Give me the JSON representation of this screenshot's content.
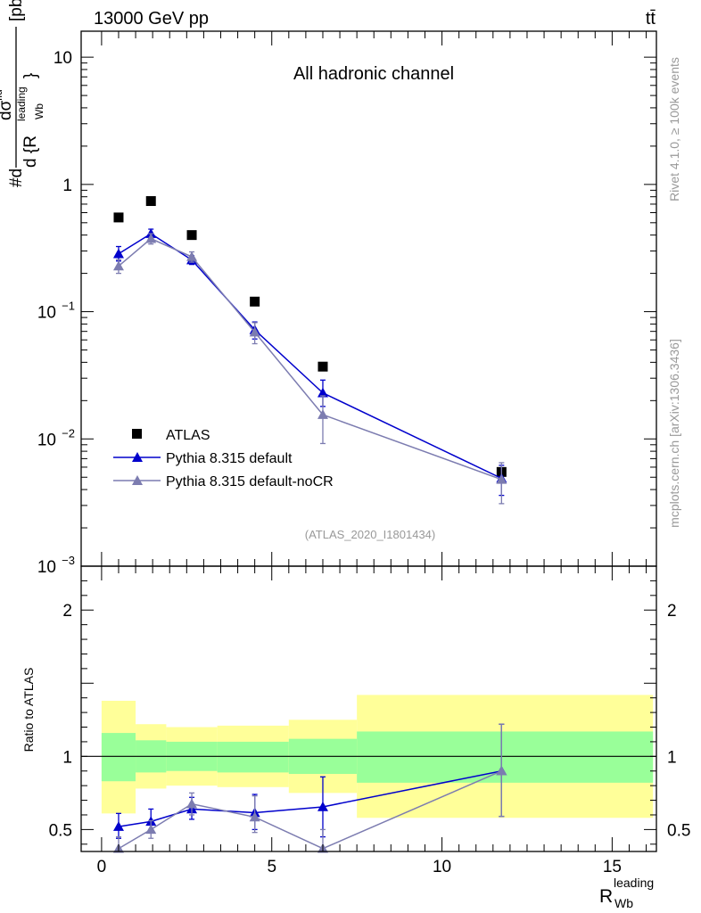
{
  "header": {
    "left": "13000 GeV pp",
    "right": "tt̄"
  },
  "side_labels": {
    "rivet": "Rivet 4.1.0, ≥ 100k events",
    "mcplots": "mcplots.cern.ch [arXiv:1306.3436]"
  },
  "colors": {
    "atlas": "#000000",
    "default": "#0000cc",
    "nocr": "#7c7cb0",
    "band_inner": "#99ff99",
    "band_outer": "#ffff99",
    "ref_line": "#000000"
  },
  "chart_data": [
    {
      "type": "scatter",
      "panel": "main",
      "title": "All hadronic channel",
      "analysis_tag": "(ATLAS_2020_I1801434)",
      "ylabel": {
        "main": "#d",
        "frac_top": "dσ",
        "frac_top_sup": "fid",
        "frac_bot_pre": "d {R",
        "frac_bot_sup": "leading",
        "frac_bot_sub": "Wb",
        "frac_bot_post": "}",
        "unit": "[pb]"
      },
      "yscale": "log",
      "ylim": [
        0.001,
        16
      ],
      "xlim": [
        -0.6,
        16.3
      ],
      "y_ticks": [
        {
          "value": 0.001,
          "base": "10",
          "exp": "−3"
        },
        {
          "value": 0.01,
          "base": "10",
          "exp": "−2"
        },
        {
          "value": 0.1,
          "base": "10",
          "exp": "−1"
        },
        {
          "value": 1,
          "base": "1",
          "exp": ""
        },
        {
          "value": 10,
          "base": "10",
          "exp": ""
        }
      ],
      "legend": [
        "ATLAS",
        "Pythia 8.315 default",
        "Pythia 8.315 default-noCR"
      ],
      "series": [
        {
          "name": "ATLAS",
          "marker": "square",
          "x": [
            0.5,
            1.45,
            2.65,
            4.5,
            6.5,
            11.75
          ],
          "y": [
            0.55,
            0.74,
            0.4,
            0.12,
            0.037,
            0.0055
          ]
        },
        {
          "name": "Pythia 8.315 default",
          "marker": "triangle",
          "line": true,
          "x": [
            0.5,
            1.45,
            2.65,
            4.5,
            6.5,
            11.75
          ],
          "y": [
            0.285,
            0.41,
            0.255,
            0.072,
            0.023,
            0.0049
          ],
          "err_lo": [
            0.25,
            0.375,
            0.235,
            0.061,
            0.018,
            0.0036
          ],
          "err_hi": [
            0.325,
            0.445,
            0.275,
            0.083,
            0.029,
            0.0062
          ]
        },
        {
          "name": "Pythia 8.315 default-noCR",
          "marker": "triangle",
          "line": true,
          "x": [
            0.5,
            1.45,
            2.65,
            4.5,
            6.5,
            11.75
          ],
          "y": [
            0.228,
            0.375,
            0.27,
            0.069,
            0.0155,
            0.0048
          ],
          "err_lo": [
            0.2,
            0.34,
            0.245,
            0.056,
            0.0092,
            0.0031
          ],
          "err_hi": [
            0.256,
            0.41,
            0.295,
            0.082,
            0.0218,
            0.0065
          ]
        }
      ]
    },
    {
      "type": "scatter",
      "panel": "ratio",
      "ylabel": "Ratio to ATLAS",
      "xlabel": {
        "base": "R",
        "sup": "leading",
        "sub": "Wb"
      },
      "ylim": [
        0.35,
        2.3
      ],
      "xlim": [
        -0.6,
        16.3
      ],
      "x_ticks": [
        0,
        5,
        10,
        15
      ],
      "y_ticks": [
        0.5,
        1,
        2
      ],
      "bands": [
        {
          "x0": 0.0,
          "x1": 1.0,
          "inner": [
            0.83,
            1.16
          ],
          "outer": [
            0.61,
            1.38
          ]
        },
        {
          "x0": 1.0,
          "x1": 1.9,
          "inner": [
            0.89,
            1.11
          ],
          "outer": [
            0.78,
            1.22
          ]
        },
        {
          "x0": 1.9,
          "x1": 3.4,
          "inner": [
            0.9,
            1.1
          ],
          "outer": [
            0.8,
            1.2
          ]
        },
        {
          "x0": 3.4,
          "x1": 5.5,
          "inner": [
            0.89,
            1.1
          ],
          "outer": [
            0.79,
            1.21
          ]
        },
        {
          "x0": 5.5,
          "x1": 7.5,
          "inner": [
            0.88,
            1.12
          ],
          "outer": [
            0.75,
            1.25
          ]
        },
        {
          "x0": 7.5,
          "x1": 16.2,
          "inner": [
            0.82,
            1.17
          ],
          "outer": [
            0.58,
            1.42
          ]
        }
      ],
      "series": [
        {
          "name": "Pythia 8.315 default",
          "x": [
            0.5,
            1.45,
            2.65,
            4.5,
            6.5,
            11.75
          ],
          "y": [
            0.52,
            0.555,
            0.64,
            0.615,
            0.655,
            0.9
          ],
          "err_lo": [
            0.44,
            0.48,
            0.57,
            0.5,
            0.45,
            0.59
          ],
          "err_hi": [
            0.61,
            0.64,
            0.72,
            0.74,
            0.86,
            1.22
          ]
        },
        {
          "name": "Pythia 8.315 default-noCR",
          "x": [
            0.5,
            1.45,
            2.65,
            4.5,
            6.5,
            11.75
          ],
          "y": [
            0.37,
            0.5,
            0.675,
            0.585,
            0.37,
            0.9
          ],
          "err_lo": [
            0.3,
            0.44,
            0.6,
            0.48,
            0.25,
            0.59
          ],
          "err_hi": [
            0.45,
            0.56,
            0.75,
            0.73,
            0.5,
            1.22
          ]
        }
      ]
    }
  ]
}
